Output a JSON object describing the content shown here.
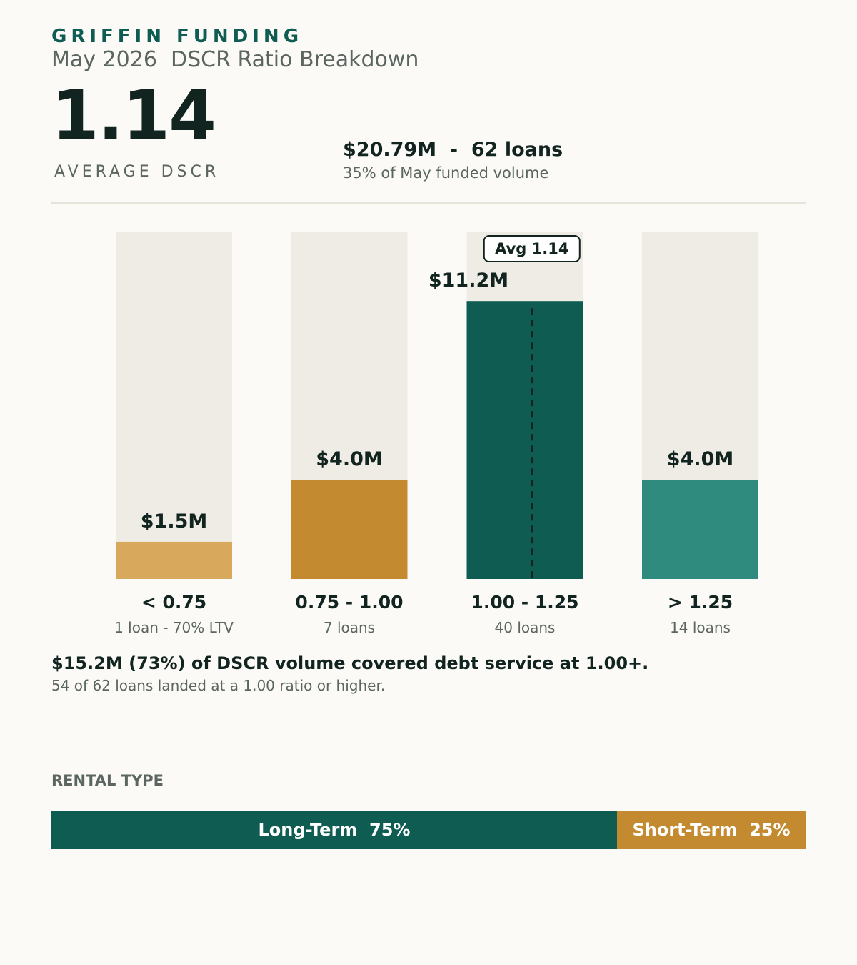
{
  "brand": "GRIFFIN FUNDING",
  "subtitle": "May 2026  DSCR Ratio Breakdown",
  "headline": {
    "value": "1.14",
    "label": "AVERAGE DSCR"
  },
  "summary": {
    "main": "$20.79M  -  62 loans",
    "sub": "35% of May funded volume"
  },
  "chart_data": {
    "type": "bar",
    "categories": [
      "< 0.75",
      "0.75 - 1.00",
      "1.00 - 1.25",
      "> 1.25"
    ],
    "values": [
      1.5,
      4.0,
      11.2,
      4.0
    ],
    "value_labels": [
      "$1.5M",
      "$4.0M",
      "$11.2M",
      "$4.0M"
    ],
    "sublabels": [
      "1 loan  -  70% LTV",
      "7 loans",
      "40 loans",
      "14 loans"
    ],
    "colors": [
      "#d8a95c",
      "#c48a2f",
      "#0f5c53",
      "#2e8b7e"
    ],
    "track_color": "#efece5",
    "ylim": [
      0,
      14
    ],
    "grid": false,
    "annotation": {
      "text": "Avg  1.14",
      "category_index": 2,
      "dscr_value": 1.14,
      "range": [
        1.0,
        1.25
      ]
    }
  },
  "notes": {
    "main": "$15.2M (73%) of DSCR volume covered debt service at 1.00+.",
    "sub": "54 of 62 loans landed at a 1.00 ratio or higher."
  },
  "rental": {
    "label": "RENTAL TYPE",
    "segments": [
      {
        "label": "Long-Term  75%",
        "share": 75,
        "color": "#0f5c53"
      },
      {
        "label": "Short-Term  25%",
        "share": 25,
        "color": "#c48a2f"
      }
    ]
  }
}
